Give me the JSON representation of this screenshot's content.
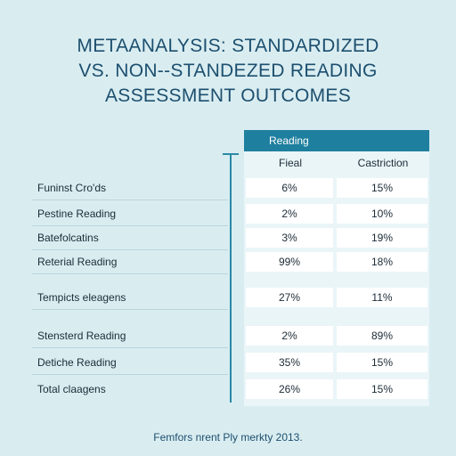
{
  "title_lines": [
    "METAANALYSIS: STANDARDIZED",
    "VS. NON--STANDEZED READING",
    "ASSESSMENT OUTCOMES"
  ],
  "footer": "Femfors nrent Ply merkty 2013.",
  "chart_data": {
    "type": "table",
    "group_header": "Reading",
    "columns": [
      "Fieal",
      "Castriction"
    ],
    "rows": [
      {
        "label": "Funinst Cro'ds",
        "values": [
          "6%",
          "15%"
        ]
      },
      {
        "label": "Pestine Reading",
        "values": [
          "2%",
          "10%"
        ]
      },
      {
        "label": "Batefolcatins",
        "values": [
          "3%",
          "19%"
        ]
      },
      {
        "label": "Reterial Reading",
        "values": [
          "99%",
          "18%"
        ]
      },
      {
        "label": "Tempicts eleagens",
        "values": [
          "27%",
          "11%"
        ]
      },
      {
        "label": "Stensterd Reading",
        "values": [
          "2%",
          "89%"
        ]
      },
      {
        "label": "Detiche Reading",
        "values": [
          "35%",
          "15%"
        ]
      },
      {
        "label": "Total claagens",
        "values": [
          "26%",
          "15%"
        ]
      }
    ]
  },
  "colors": {
    "background": "#d9edf1",
    "accent": "#1f7f9f",
    "title": "#1d4f6e"
  }
}
